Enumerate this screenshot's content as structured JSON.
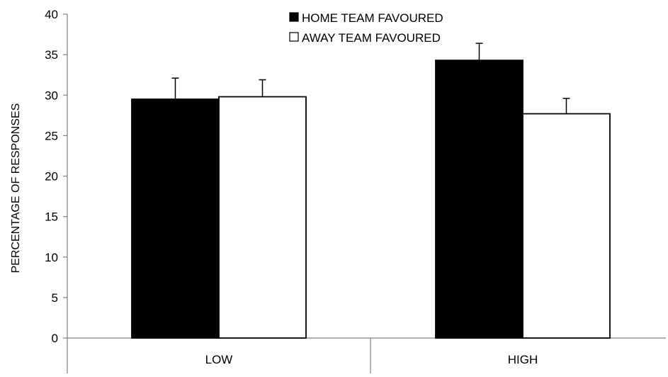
{
  "chart_data": {
    "type": "bar",
    "title": "",
    "xlabel": "",
    "ylabel": "PERCENTAGE OF RESPONSES",
    "ylim": [
      0,
      40
    ],
    "yticks": [
      0,
      5,
      10,
      15,
      20,
      25,
      30,
      35,
      40
    ],
    "categories": [
      "LOW",
      "HIGH"
    ],
    "grid": false,
    "legend_position": "top-center",
    "series": [
      {
        "name": "HOME TEAM FAVOURED",
        "color": "#000000",
        "values": [
          29.5,
          34.3
        ],
        "error": [
          2.6,
          2.1
        ]
      },
      {
        "name": "AWAY TEAM FAVOURED",
        "color": "#ffffff",
        "values": [
          29.8,
          27.7
        ],
        "error": [
          2.1,
          1.9
        ]
      }
    ]
  }
}
